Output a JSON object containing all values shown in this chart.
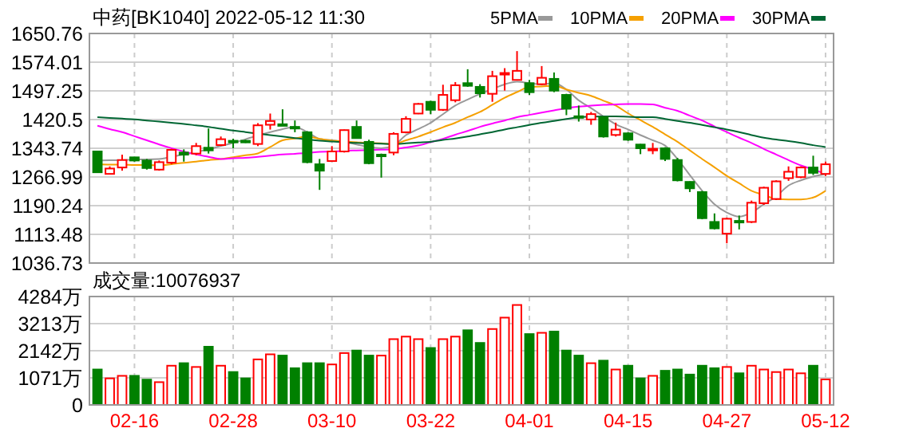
{
  "chart_data": [
    {
      "type": "candlestick",
      "title": "中药[BK1040] 2022-05-12 11:30",
      "categories": [
        null,
        null,
        null,
        null,
        null,
        null,
        null,
        null,
        null,
        null,
        null,
        null,
        null,
        null,
        null,
        null,
        null,
        null,
        null,
        null,
        null,
        null,
        null,
        null,
        null,
        null,
        null,
        null,
        null,
        null,
        null,
        null,
        null,
        null,
        null,
        null,
        null,
        null,
        null,
        null,
        null,
        null,
        null,
        null,
        null,
        null,
        null,
        null,
        null,
        null,
        null,
        null,
        null,
        null,
        null,
        null,
        null,
        null,
        null,
        null
      ],
      "tick_labels": "y",
      "grid": true,
      "legend": "top right",
      "ylim": [
        1036.73,
        1650.76
      ],
      "yticks": [
        1036.73,
        1113.48,
        1190.24,
        1266.99,
        1343.74,
        1420.5,
        {
          "value": 1497.25,
          "label": "1497.25"
        },
        1574.01,
        1650.76
      ],
      "ohlc": [
        [
          1335.2,
          1336.6,
          1278.0,
          1279.5
        ],
        [
          1275.2,
          1295.2,
          1273.8,
          1289.5
        ],
        [
          1292.3,
          1326.6,
          1283.8,
          1312.3
        ],
        [
          1319.5,
          1320.9,
          1308.0,
          1310.9
        ],
        [
          1310.9,
          1315.2,
          1286.6,
          1290.9
        ],
        [
          1286.6,
          1310.9,
          1283.8,
          1306.6
        ],
        [
          1305.2,
          1342.3,
          1300.9,
          1339.5
        ],
        [
          1332.3,
          1340.9,
          1308.0,
          1326.6
        ],
        [
          1329.5,
          1358.0,
          1325.2,
          1349.5
        ],
        [
          1345.2,
          1396.6,
          1329.5,
          1338.0
        ],
        [
          1352.3,
          1375.2,
          1349.5,
          1368.0
        ],
        [
          1363.7,
          1369.4,
          1343.7,
          1359.5
        ],
        [
          1363.7,
          1366.6,
          1357.9,
          1359.5
        ],
        [
          1355.2,
          1410.9,
          1349.5,
          1405.1
        ],
        [
          1406.6,
          1436.6,
          1393.7,
          1416.6
        ],
        [
          1408.0,
          1448.0,
          1403.7,
          1405.1
        ],
        [
          1400.9,
          1418.0,
          1386.6,
          1396.6
        ],
        [
          1386.6,
          1389.4,
          1303.8,
          1306.6
        ],
        [
          1300.9,
          1315.2,
          1232.4,
          1283.8
        ],
        [
          1309.5,
          1349.5,
          1308.0,
          1335.2
        ],
        [
          1335.2,
          1393.7,
          1332.3,
          1392.3
        ],
        [
          1400.9,
          1418.0,
          1369.4,
          1370.9
        ],
        [
          1360.9,
          1366.6,
          1300.9,
          1303.8
        ],
        [
          1326.6,
          1329.5,
          1265.2,
          1323.8
        ],
        [
          1332.3,
          1386.6,
          1325.2,
          1382.3
        ],
        [
          1386.6,
          1429.4,
          1383.7,
          1422.3
        ],
        [
          1436.6,
          1465.1,
          1435.1,
          1462.3
        ],
        [
          1468.0,
          1470.8,
          1435.1,
          1446.6
        ],
        [
          1446.6,
          1513.7,
          1443.7,
          1486.5
        ],
        [
          1472.3,
          1520.8,
          1466.6,
          1512.3
        ],
        [
          1517.9,
          1555.1,
          1508.0,
          1510.8
        ],
        [
          1508.0,
          1515.1,
          1479.4,
          1490.8
        ],
        [
          1489.4,
          1550.8,
          1468.0,
          1536.5
        ],
        [
          1542.3,
          1558.0,
          1498.0,
          1545.1
        ],
        [
          1526.5,
          1603.6,
          1525.1,
          1550.8
        ],
        [
          1517.9,
          1526.5,
          1486.5,
          1493.7
        ],
        [
          1515.1,
          1563.6,
          1512.3,
          1532.2
        ],
        [
          1529.4,
          1546.5,
          1493.7,
          1497.9
        ],
        [
          1486.5,
          1489.4,
          1432.3,
          1449.4
        ],
        [
          1429.4,
          1458.0,
          1415.1,
          1425.1
        ],
        [
          1420.8,
          1440.8,
          1406.6,
          1435.1
        ],
        [
          1426.6,
          1429.4,
          1372.3,
          1375.2
        ],
        [
          1379.4,
          1412.3,
          1375.2,
          1393.7
        ],
        [
          1383.7,
          1386.6,
          1363.7,
          1366.6
        ],
        [
          1353.7,
          1355.2,
          1328.0,
          1343.7
        ],
        [
          1339.5,
          1358.0,
          1328.0,
          1342.3
        ],
        [
          1343.7,
          1346.6,
          1309.5,
          1315.2
        ],
        [
          1312.3,
          1318.0,
          1255.2,
          1258.0
        ],
        [
          1253.8,
          1255.2,
          1226.6,
          1236.6
        ],
        [
          1226.6,
          1229.5,
          1153.8,
          1156.7
        ],
        [
          1146.7,
          1169.5,
          1126.7,
          1129.5
        ],
        [
          1115.3,
          1158.1,
          1089.6,
          1155.2
        ],
        [
          1149.5,
          1163.8,
          1126.7,
          1146.7
        ],
        [
          1146.7,
          1203.8,
          1143.8,
          1198.1
        ],
        [
          1196.7,
          1240.9,
          1192.4,
          1238.1
        ],
        [
          1208.1,
          1258.0,
          1205.2,
          1255.2
        ],
        [
          1263.8,
          1295.2,
          1256.6,
          1280.9
        ],
        [
          1266.6,
          1295.2,
          1263.8,
          1292.3
        ],
        [
          1292.3,
          1323.8,
          1272.3,
          1278.0
        ],
        [
          1275.2,
          1308.0,
          1269.5,
          1300.9
        ]
      ],
      "series": [
        {
          "type": "line",
          "name": "5PMA",
          "color": "#999999",
          "values": [
            1311,
            1312,
            1312,
            1314,
            1314,
            1315,
            1321,
            1327,
            1334,
            1341,
            1350,
            1358,
            1368,
            1378,
            1387,
            1395,
            1401,
            1387,
            1369,
            1365,
            1361,
            1354,
            1347,
            1344,
            1351,
            1379,
            1395,
            1412,
            1435,
            1458,
            1474,
            1489,
            1502,
            1515,
            1522,
            1518,
            1515,
            1518,
            1501,
            1472,
            1451,
            1429,
            1408,
            1394,
            1379,
            1365,
            1351,
            1315,
            1272,
            1230,
            1194,
            1172,
            1161,
            1172,
            1194,
            1215,
            1244,
            1258,
            1268,
            1275
          ]
        },
        {
          "type": "line",
          "name": "10PMA",
          "color": "#f5a000",
          "values": [
            1301,
            1300,
            1300,
            1299,
            1299,
            1298,
            1301,
            1305,
            1308,
            1312,
            1315,
            1320,
            1325,
            1330,
            1347,
            1365,
            1370,
            1375,
            1369,
            1364,
            1362,
            1360,
            1358,
            1357,
            1355,
            1365,
            1375,
            1387,
            1400,
            1412,
            1427,
            1441,
            1460,
            1479,
            1494,
            1508,
            1509,
            1511,
            1501,
            1492,
            1484,
            1471,
            1458,
            1437,
            1419,
            1401,
            1381,
            1361,
            1338,
            1315,
            1293,
            1270,
            1250,
            1230,
            1219,
            1208,
            1207,
            1207,
            1212,
            1230
          ]
        },
        {
          "type": "line",
          "name": "20PMA",
          "color": "#ff00ff",
          "values": [
            1404,
            1395,
            1387,
            1376,
            1365,
            1354,
            1344,
            1335,
            1327,
            1321,
            1315,
            1317,
            1318,
            1321,
            1324,
            1327,
            1329,
            1331,
            1334,
            1335,
            1337,
            1338,
            1339,
            1340,
            1341,
            1346,
            1351,
            1360,
            1369,
            1380,
            1390,
            1401,
            1410,
            1418,
            1427,
            1433,
            1439,
            1445,
            1451,
            1455,
            1458,
            1460,
            1461,
            1462,
            1462,
            1461,
            1452,
            1444,
            1431,
            1418,
            1402,
            1387,
            1372,
            1358,
            1342,
            1327,
            1312,
            1298,
            1287,
            1275
          ]
        },
        {
          "type": "line",
          "name": "30PMA",
          "color": "#006633",
          "values": [
            1427,
            1425,
            1423,
            1421,
            1418,
            1415,
            1412,
            1409,
            1405,
            1401,
            1396,
            1391,
            1387,
            1383,
            1379,
            1375,
            1371,
            1367,
            1364,
            1362,
            1360,
            1358,
            1357,
            1356,
            1355,
            1357,
            1359,
            1361,
            1366,
            1370,
            1375,
            1381,
            1387,
            1394,
            1400,
            1406,
            1412,
            1417,
            1422,
            1427,
            1428,
            1429,
            1429,
            1428,
            1427,
            1427,
            1422,
            1417,
            1412,
            1406,
            1400,
            1394,
            1387,
            1379,
            1372,
            1367,
            1363,
            1358,
            1352,
            1347
          ]
        }
      ]
    },
    {
      "type": "bar",
      "title": "成交量:10076937",
      "categories": [
        null,
        null,
        null,
        "02-16",
        null,
        null,
        null,
        null,
        null,
        null,
        null,
        "02-28",
        null,
        null,
        null,
        null,
        null,
        null,
        null,
        "03-10",
        null,
        null,
        null,
        null,
        null,
        null,
        null,
        "03-22",
        null,
        null,
        null,
        null,
        null,
        null,
        null,
        "04-01",
        null,
        null,
        null,
        null,
        null,
        null,
        null,
        "04-15",
        null,
        null,
        null,
        null,
        null,
        null,
        null,
        "04-27",
        null,
        null,
        null,
        null,
        null,
        null,
        null,
        "05-12"
      ],
      "grid": true,
      "ylim": [
        0,
        4284
      ],
      "yticks": [
        0,
        {
          "value": 1071,
          "label": "1071万"
        },
        {
          "value": 2142,
          "label": "2142万"
        },
        {
          "value": 3213,
          "label": "3213万"
        },
        {
          "value": 4284,
          "label": "4284万"
        }
      ],
      "values": [
        1400,
        1050,
        1150,
        1150,
        1000,
        900,
        1550,
        1650,
        1500,
        2300,
        1550,
        1300,
        1050,
        1800,
        2000,
        1950,
        1450,
        1650,
        1650,
        1600,
        2050,
        2150,
        1950,
        1950,
        2600,
        2700,
        2600,
        2250,
        2600,
        2700,
        2950,
        2450,
        3000,
        3450,
        3950,
        2800,
        2850,
        2900,
        2150,
        1950,
        1650,
        1750,
        1400,
        1550,
        1050,
        1150,
        1350,
        1400,
        1200,
        1550,
        1450,
        1500,
        1250,
        1550,
        1400,
        1300,
        1400,
        1250,
        1550,
        1008
      ],
      "colors": [
        "#008000",
        "#ff0000",
        "#ff0000",
        "#008000",
        "#008000",
        "#ff0000",
        "#ff0000",
        "#008000",
        "#ff0000",
        "#008000",
        "#ff0000",
        "#008000",
        "#008000",
        "#ff0000",
        "#ff0000",
        "#008000",
        "#008000",
        "#008000",
        "#008000",
        "#ff0000",
        "#ff0000",
        "#008000",
        "#008000",
        "#ff0000",
        "#ff0000",
        "#ff0000",
        "#ff0000",
        "#008000",
        "#ff0000",
        "#ff0000",
        "#008000",
        "#008000",
        "#ff0000",
        "#ff0000",
        "#ff0000",
        "#008000",
        "#ff0000",
        "#008000",
        "#008000",
        "#008000",
        "#ff0000",
        "#008000",
        "#ff0000",
        "#008000",
        "#008000",
        "#ff0000",
        "#008000",
        "#008000",
        "#008000",
        "#008000",
        "#008000",
        "#ff0000",
        "#008000",
        "#ff0000",
        "#ff0000",
        "#ff0000",
        "#ff0000",
        "#ff0000",
        "#008000",
        "#ff0000"
      ]
    }
  ]
}
